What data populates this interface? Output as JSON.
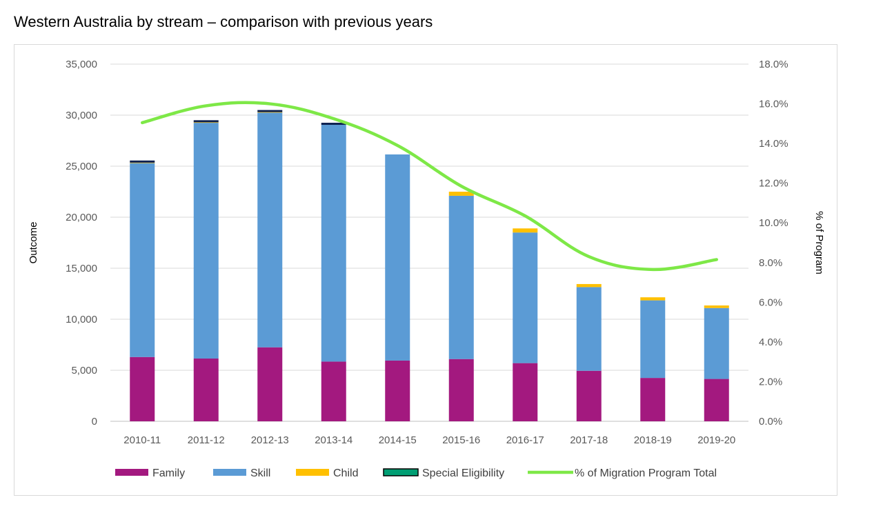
{
  "chart_data": {
    "type": "bar",
    "stacked": true,
    "title": "Western Australia by stream – comparison with previous years",
    "xlabel": "",
    "ylabel": "Outcome",
    "y2label": "% of Program",
    "ylim": [
      0,
      35000
    ],
    "y2lim": [
      0,
      18
    ],
    "yticks": [
      "0",
      "5,000",
      "10,000",
      "15,000",
      "20,000",
      "25,000",
      "30,000",
      "35,000"
    ],
    "y2ticks": [
      "0.0%",
      "2.0%",
      "4.0%",
      "6.0%",
      "8.0%",
      "10.0%",
      "12.0%",
      "14.0%",
      "16.0%",
      "18.0%"
    ],
    "categories": [
      "2010-11",
      "2011-12",
      "2012-13",
      "2013-14",
      "2014-15",
      "2015-16",
      "2016-17",
      "2017-18",
      "2018-19",
      "2019-20"
    ],
    "series": [
      {
        "name": "Family",
        "color": "#a3197f",
        "values": [
          6300,
          6150,
          7250,
          5850,
          5950,
          6100,
          5700,
          4950,
          4250,
          4150
        ]
      },
      {
        "name": "Skill",
        "color": "#5b9bd5",
        "values": [
          19000,
          23100,
          23000,
          23200,
          20200,
          16000,
          12800,
          8200,
          7600,
          6950
        ]
      },
      {
        "name": "Child",
        "color": "#ffc000",
        "values": [
          50,
          50,
          50,
          0,
          0,
          400,
          400,
          300,
          300,
          250
        ]
      },
      {
        "name": "Special Eligibility",
        "color": "#0b1f4f",
        "legend_color": "#009e73",
        "values": [
          200,
          200,
          200,
          50,
          0,
          0,
          0,
          0,
          0,
          0
        ]
      }
    ],
    "line_series": {
      "name": "% of Migration Program Total",
      "color": "#7ee847",
      "axis": "right",
      "values": [
        15.05,
        15.9,
        16.0,
        15.25,
        13.9,
        11.85,
        10.35,
        8.3,
        7.65,
        8.15
      ]
    },
    "grid": true,
    "legend": "bottom"
  }
}
